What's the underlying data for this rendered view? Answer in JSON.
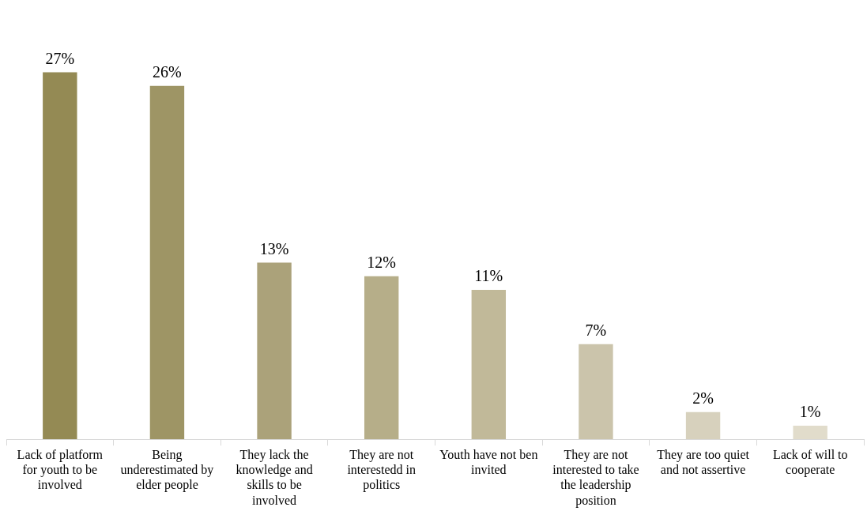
{
  "chart_data": {
    "type": "bar",
    "categories": [
      "Lack of platform for youth to be involved",
      "Being underestimated by elder people",
      "They lack the knowledge and skills to be involved",
      "They are not interestedd in politics",
      "Youth have not ben invited",
      "They are not interested to take the leadership position",
      "They are too quiet and not assertive",
      "Lack of will to cooperate"
    ],
    "values": [
      27,
      26,
      13,
      12,
      11,
      7,
      2,
      1
    ],
    "value_labels": [
      "27%",
      "26%",
      "13%",
      "12%",
      "11%",
      "7%",
      "2%",
      "1%"
    ],
    "colors": [
      "#948a54",
      "#9e9565",
      "#aba27a",
      "#b6ae89",
      "#c1b999",
      "#cbc4ab",
      "#d7d1bd",
      "#e1dccb"
    ],
    "relative": false,
    "grid": false,
    "legend": false
  }
}
